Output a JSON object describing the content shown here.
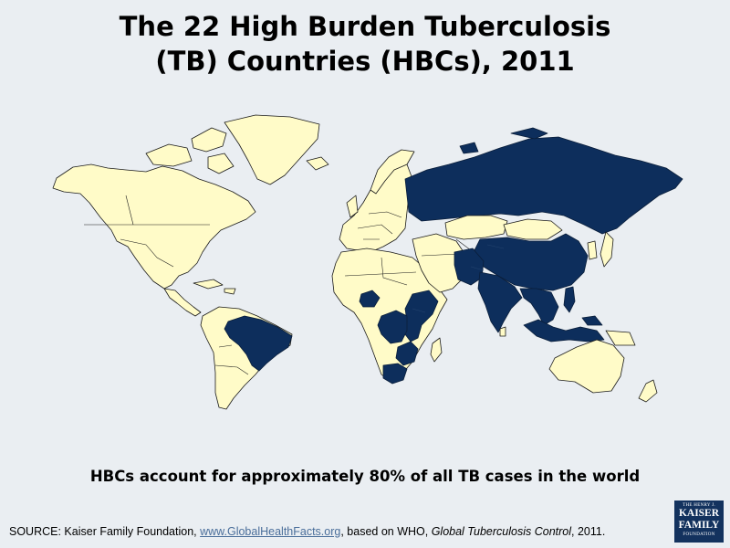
{
  "title": {
    "line1": "The 22 High Burden Tuberculosis",
    "line2": "(TB) Countries (HBCs), 2011"
  },
  "caption": "HBCs account for approximately 80% of all TB cases in the world",
  "source": {
    "prefix": "SOURCE: Kaiser Family Foundation, ",
    "link": "www.GlobalHealthFacts.org",
    "middle": ", based on WHO, ",
    "publication": "Global Tuberculosis Control",
    "suffix": ", 2011."
  },
  "logo": {
    "line1": "THE HENRY J.",
    "line2": "KAISER",
    "line3": "FAMILY",
    "line4": "FOUNDATION"
  },
  "map": {
    "colors": {
      "hbc": "#0d2e5c",
      "other": "#fffbc8",
      "ocean": "#eaeef2"
    },
    "hbc_countries_shown": [
      "Russia",
      "China",
      "India",
      "Pakistan",
      "Afghanistan",
      "Bangladesh",
      "Myanmar",
      "Thailand",
      "Cambodia",
      "Viet Nam",
      "Philippines",
      "Indonesia",
      "Brazil",
      "Nigeria",
      "Ethiopia",
      "Kenya",
      "Uganda",
      "UR Tanzania",
      "DR Congo",
      "Mozambique",
      "Zimbabwe",
      "South Africa"
    ]
  }
}
